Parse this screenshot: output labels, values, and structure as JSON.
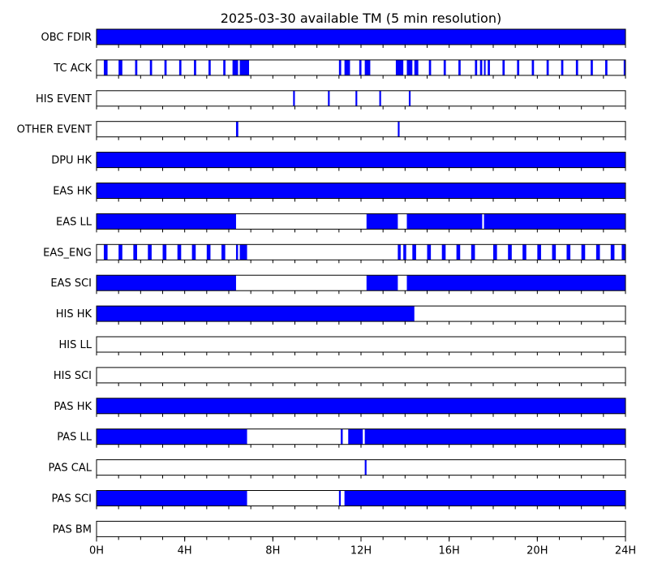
{
  "chart_data": {
    "type": "timeline",
    "title": "2025-03-30 available TM (5 min resolution)",
    "x_range_hours": [
      0,
      24
    ],
    "x_ticks": [
      {
        "hour": 0,
        "label": "0H"
      },
      {
        "hour": 4,
        "label": "4H"
      },
      {
        "hour": 8,
        "label": "8H"
      },
      {
        "hour": 12,
        "label": "12H"
      },
      {
        "hour": 16,
        "label": "16H"
      },
      {
        "hour": 20,
        "label": "20H"
      },
      {
        "hour": 24,
        "label": "24H"
      }
    ],
    "minor_tick_hours": 1,
    "fill_color": "#0000ff",
    "series": [
      {
        "name": "OBC FDIR",
        "intervals": [
          [
            0,
            24
          ]
        ]
      },
      {
        "name": "TC ACK",
        "intervals": [
          [
            0.33,
            0.5
          ],
          [
            1.0,
            1.17
          ],
          [
            1.75,
            1.85
          ],
          [
            2.42,
            2.52
          ],
          [
            3.08,
            3.18
          ],
          [
            3.75,
            3.85
          ],
          [
            4.42,
            4.52
          ],
          [
            5.08,
            5.18
          ],
          [
            5.75,
            5.85
          ],
          [
            6.17,
            6.42
          ],
          [
            6.5,
            6.92
          ],
          [
            11.0,
            11.1
          ],
          [
            11.25,
            11.5
          ],
          [
            11.92,
            12.02
          ],
          [
            12.17,
            12.42
          ],
          [
            13.58,
            13.92
          ],
          [
            14.08,
            14.33
          ],
          [
            14.42,
            14.6
          ],
          [
            15.08,
            15.18
          ],
          [
            15.75,
            15.85
          ],
          [
            16.42,
            16.52
          ],
          [
            17.17,
            17.27
          ],
          [
            17.4,
            17.5
          ],
          [
            17.58,
            17.65
          ],
          [
            17.75,
            17.85
          ],
          [
            18.42,
            18.52
          ],
          [
            19.08,
            19.18
          ],
          [
            19.75,
            19.85
          ],
          [
            20.42,
            20.52
          ],
          [
            21.08,
            21.18
          ],
          [
            21.75,
            21.85
          ],
          [
            22.42,
            22.52
          ],
          [
            23.08,
            23.18
          ],
          [
            23.92,
            24.0
          ]
        ]
      },
      {
        "name": "HIS EVENT",
        "intervals": [
          [
            8.92,
            9.0
          ],
          [
            10.5,
            10.58
          ],
          [
            11.75,
            11.83
          ],
          [
            12.83,
            12.91
          ],
          [
            14.17,
            14.25
          ]
        ]
      },
      {
        "name": "OTHER EVENT",
        "intervals": [
          [
            6.33,
            6.43
          ],
          [
            13.67,
            13.75
          ]
        ]
      },
      {
        "name": "DPU HK",
        "intervals": [
          [
            0,
            24
          ]
        ]
      },
      {
        "name": "EAS HK",
        "intervals": [
          [
            0,
            24
          ]
        ]
      },
      {
        "name": "EAS LL",
        "intervals": [
          [
            0,
            6.33
          ],
          [
            12.25,
            13.67
          ],
          [
            14.08,
            17.5
          ],
          [
            17.58,
            24
          ]
        ]
      },
      {
        "name": "EAS_ENG",
        "intervals": [
          [
            0.33,
            0.5
          ],
          [
            1.0,
            1.17
          ],
          [
            1.67,
            1.84
          ],
          [
            2.33,
            2.5
          ],
          [
            3.0,
            3.17
          ],
          [
            3.67,
            3.84
          ],
          [
            4.33,
            4.5
          ],
          [
            5.0,
            5.17
          ],
          [
            5.67,
            5.84
          ],
          [
            6.33,
            6.42
          ],
          [
            6.5,
            6.83
          ],
          [
            13.67,
            13.8
          ],
          [
            13.92,
            14.05
          ],
          [
            14.33,
            14.5
          ],
          [
            15.0,
            15.17
          ],
          [
            15.67,
            15.84
          ],
          [
            16.33,
            16.5
          ],
          [
            17.0,
            17.17
          ],
          [
            18.0,
            18.17
          ],
          [
            18.67,
            18.84
          ],
          [
            19.33,
            19.5
          ],
          [
            20.0,
            20.17
          ],
          [
            20.67,
            20.84
          ],
          [
            21.33,
            21.5
          ],
          [
            22.0,
            22.17
          ],
          [
            22.67,
            22.84
          ],
          [
            23.33,
            23.5
          ],
          [
            23.83,
            24.0
          ]
        ]
      },
      {
        "name": "EAS SCI",
        "intervals": [
          [
            0,
            6.33
          ],
          [
            12.25,
            13.67
          ],
          [
            14.08,
            24
          ]
        ]
      },
      {
        "name": "HIS HK",
        "intervals": [
          [
            0,
            14.42
          ]
        ]
      },
      {
        "name": "HIS LL",
        "intervals": []
      },
      {
        "name": "HIS SCI",
        "intervals": []
      },
      {
        "name": "PAS HK",
        "intervals": [
          [
            0,
            24
          ]
        ]
      },
      {
        "name": "PAS LL",
        "intervals": [
          [
            0,
            6.83
          ],
          [
            11.08,
            11.17
          ],
          [
            11.42,
            12.08
          ],
          [
            12.17,
            24
          ]
        ]
      },
      {
        "name": "PAS CAL",
        "intervals": [
          [
            12.17,
            12.25
          ]
        ]
      },
      {
        "name": "PAS SCI",
        "intervals": [
          [
            0,
            6.83
          ],
          [
            11.0,
            11.08
          ],
          [
            11.25,
            24
          ]
        ]
      },
      {
        "name": "PAS BM",
        "intervals": []
      }
    ]
  }
}
